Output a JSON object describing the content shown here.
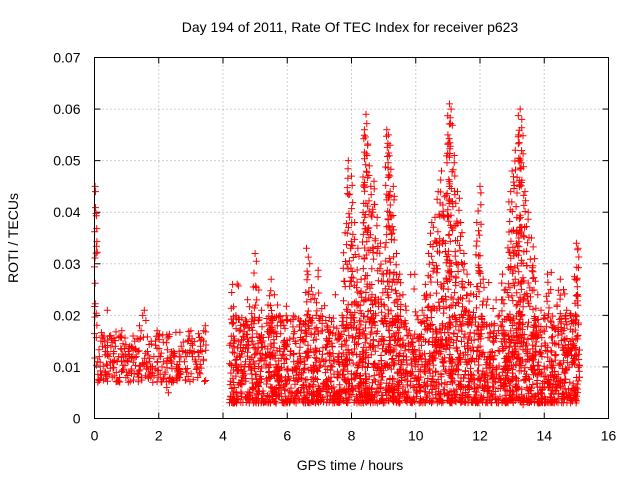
{
  "chart_data": {
    "type": "scatter",
    "title": "Day 194 of 2011, Rate Of TEC Index for receiver p623",
    "xlabel": "GPS time / hours",
    "ylabel": "ROTI / TECUs",
    "xlim": [
      0,
      16
    ],
    "ylim": [
      0,
      0.07
    ],
    "x_ticks": [
      "0",
      "2",
      "4",
      "6",
      "8",
      "10",
      "12",
      "14",
      "16"
    ],
    "y_ticks": [
      "0",
      "0.01",
      "0.02",
      "0.03",
      "0.04",
      "0.05",
      "0.06",
      "0.07"
    ],
    "grid": true,
    "marker": "plus",
    "color": "#ff0000",
    "series": [
      {
        "name": "ROTI",
        "x": [
          0.02,
          0.03,
          0.1,
          0.15,
          0.2,
          0.25,
          0.3,
          0.35,
          0.4,
          0.45,
          0.5,
          0.55,
          0.6,
          0.65,
          0.7,
          0.75,
          0.8,
          0.85,
          0.9,
          0.95,
          1.0,
          1.05,
          1.1,
          1.15,
          1.2,
          1.25,
          1.3,
          1.35,
          1.4,
          1.45,
          1.5,
          1.55,
          1.6,
          1.65,
          1.7,
          1.75,
          1.8,
          1.85,
          1.9,
          1.95,
          2.0,
          2.05,
          2.1,
          2.15,
          2.2,
          2.25,
          2.3,
          2.35,
          2.4,
          2.45,
          2.5,
          2.55,
          2.6,
          2.65,
          2.7,
          2.75,
          2.8,
          2.85,
          2.9,
          2.95,
          3.0,
          3.05,
          3.1,
          3.15,
          3.2,
          3.25,
          3.3,
          3.35,
          3.4,
          3.45,
          4.3,
          4.4,
          4.5,
          4.6,
          4.7,
          4.8,
          4.9,
          5.0,
          5.05,
          5.1,
          5.2,
          5.3,
          5.4,
          5.5,
          5.6,
          5.7,
          5.8,
          5.9,
          6.0,
          6.1,
          6.2,
          6.3,
          6.4,
          6.5,
          6.6,
          6.7,
          6.8,
          6.9,
          7.0,
          7.1,
          7.2,
          7.3,
          7.4,
          7.5,
          7.6,
          7.7,
          7.8,
          7.9,
          8.0,
          8.1,
          8.2,
          8.3,
          8.4,
          8.45,
          8.5,
          8.6,
          8.7,
          8.8,
          8.9,
          9.0,
          9.1,
          9.15,
          9.2,
          9.3,
          9.4,
          9.5,
          9.6,
          9.7,
          9.8,
          9.9,
          10.0,
          10.1,
          10.2,
          10.3,
          10.4,
          10.5,
          10.6,
          10.7,
          10.8,
          10.9,
          11.0,
          11.05,
          11.1,
          11.2,
          11.3,
          11.4,
          11.5,
          11.6,
          11.7,
          11.8,
          11.9,
          12.0,
          12.1,
          12.2,
          12.3,
          12.4,
          12.5,
          12.6,
          12.7,
          12.8,
          12.9,
          13.0,
          13.1,
          13.2,
          13.25,
          13.3,
          13.4,
          13.5,
          13.6,
          13.7,
          13.8,
          13.9,
          14.0,
          14.1,
          14.2,
          14.3,
          14.4,
          14.5,
          14.6,
          14.7,
          14.8,
          14.9,
          15.0,
          15.05
        ],
        "y": [
          0.045,
          0.044,
          0.011,
          0.012,
          0.015,
          0.014,
          0.016,
          0.013,
          0.021,
          0.012,
          0.011,
          0.008,
          0.013,
          0.014,
          0.011,
          0.012,
          0.016,
          0.017,
          0.012,
          0.011,
          0.009,
          0.013,
          0.014,
          0.012,
          0.016,
          0.015,
          0.012,
          0.013,
          0.018,
          0.017,
          0.02,
          0.021,
          0.019,
          0.013,
          0.011,
          0.009,
          0.01,
          0.012,
          0.015,
          0.017,
          0.016,
          0.012,
          0.01,
          0.011,
          0.009,
          0.006,
          0.005,
          0.008,
          0.011,
          0.013,
          0.012,
          0.01,
          0.009,
          0.011,
          0.014,
          0.013,
          0.011,
          0.012,
          0.015,
          0.016,
          0.017,
          0.012,
          0.013,
          0.011,
          0.01,
          0.012,
          0.014,
          0.013,
          0.017,
          0.018,
          0.026,
          0.02,
          0.017,
          0.013,
          0.011,
          0.01,
          0.015,
          0.032,
          0.023,
          0.019,
          0.021,
          0.014,
          0.022,
          0.027,
          0.024,
          0.022,
          0.018,
          0.015,
          0.019,
          0.013,
          0.011,
          0.009,
          0.012,
          0.015,
          0.033,
          0.03,
          0.024,
          0.02,
          0.013,
          0.017,
          0.019,
          0.015,
          0.014,
          0.024,
          0.012,
          0.018,
          0.036,
          0.05,
          0.047,
          0.038,
          0.033,
          0.027,
          0.056,
          0.059,
          0.053,
          0.045,
          0.046,
          0.039,
          0.034,
          0.028,
          0.056,
          0.055,
          0.053,
          0.045,
          0.032,
          0.028,
          0.024,
          0.021,
          0.017,
          0.014,
          0.012,
          0.015,
          0.021,
          0.026,
          0.032,
          0.038,
          0.039,
          0.044,
          0.048,
          0.043,
          0.055,
          0.061,
          0.06,
          0.051,
          0.044,
          0.038,
          0.032,
          0.028,
          0.026,
          0.024,
          0.038,
          0.045,
          0.027,
          0.022,
          0.018,
          0.015,
          0.023,
          0.02,
          0.028,
          0.025,
          0.042,
          0.048,
          0.052,
          0.055,
          0.06,
          0.058,
          0.044,
          0.04,
          0.035,
          0.031,
          0.024,
          0.021,
          0.02,
          0.028,
          0.025,
          0.018,
          0.022,
          0.027,
          0.025,
          0.021,
          0.02,
          0.019,
          0.034,
          0.033
        ],
        "baseline_noise": {
          "x_ranges": [
            [
              4.2,
              15.1
            ]
          ],
          "y_range": [
            0.003,
            0.02
          ],
          "density": "very high"
        }
      }
    ]
  }
}
